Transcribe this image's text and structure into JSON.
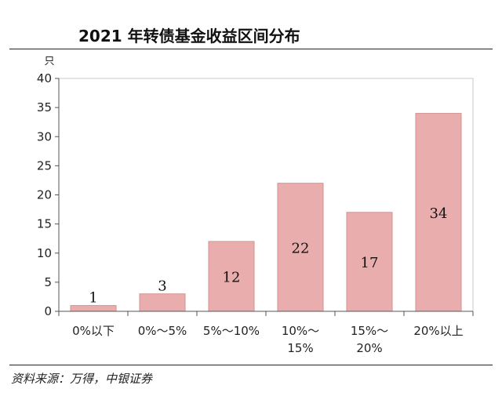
{
  "title": "2021 年转债基金收益区间分布",
  "source": "资料来源：万得，中银证券",
  "chart_data": {
    "type": "bar",
    "unit": "只",
    "categories": [
      "0%以下",
      "0%～5%",
      "5%～10%",
      "10%～15%",
      "15%～20%",
      "20%以上"
    ],
    "category_lines": [
      [
        "0%以下"
      ],
      [
        "0%～5%"
      ],
      [
        "5%～10%"
      ],
      [
        "10%～",
        "15%"
      ],
      [
        "15%～",
        "20%"
      ],
      [
        "20%以上"
      ]
    ],
    "values": [
      1,
      3,
      12,
      22,
      17,
      34
    ],
    "ylim": [
      0,
      40
    ],
    "yticks": [
      0,
      5,
      10,
      15,
      20,
      25,
      30,
      35,
      40
    ],
    "bar_color": "#e8adac",
    "bar_edge_color": "#d49594",
    "legend": "none",
    "grid": false
  }
}
